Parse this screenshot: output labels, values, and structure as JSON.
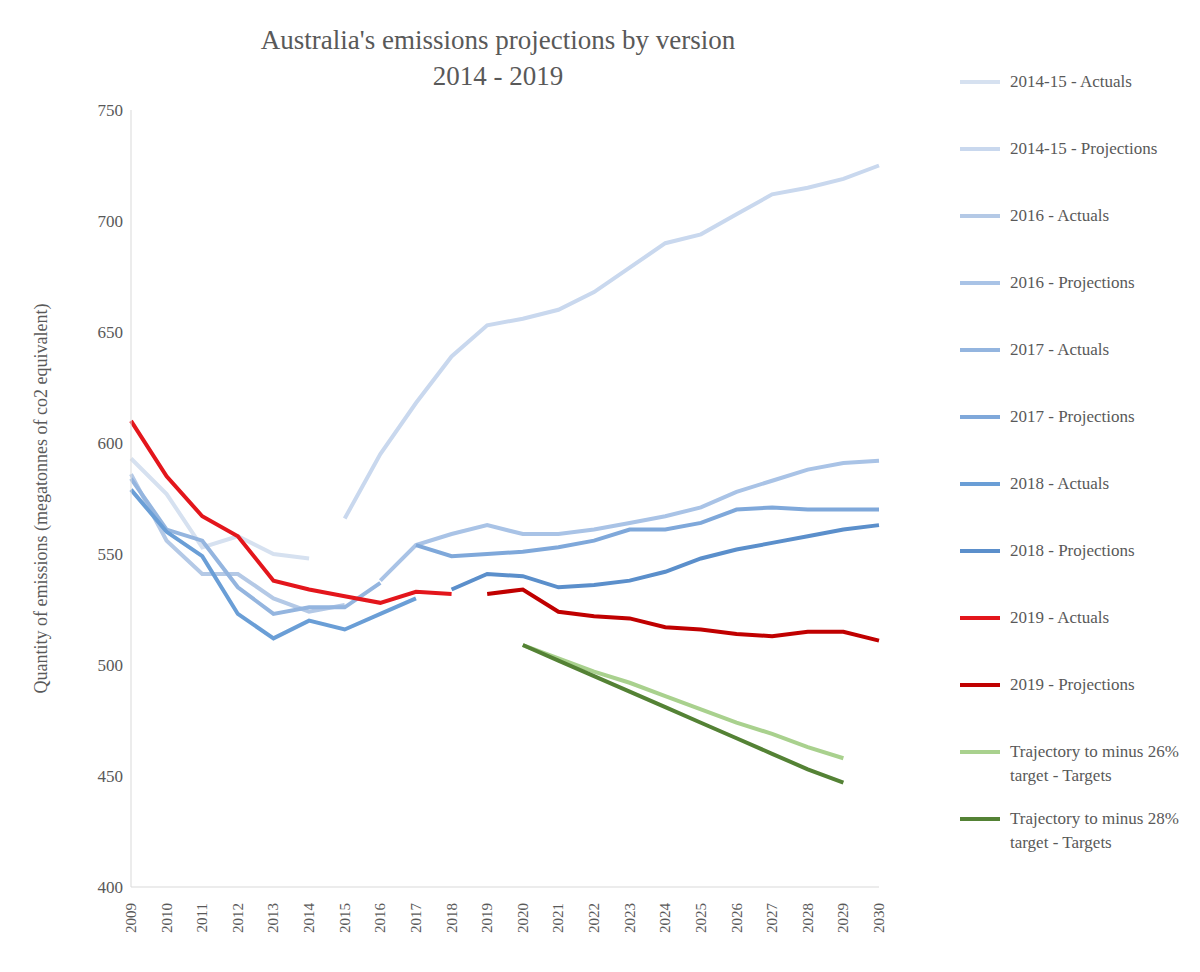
{
  "chart_data": {
    "type": "line",
    "title": "Australia's emissions projections by version",
    "subtitle": "2014 - 2019",
    "y_label": "Quantity of emissions (megatonnes of co2 equivalent)",
    "categories": [
      "2009",
      "2010",
      "2011",
      "2012",
      "2013",
      "2014",
      "2015",
      "2016",
      "2017",
      "2018",
      "2019",
      "2020",
      "2021",
      "2022",
      "2023",
      "2024",
      "2025",
      "2026",
      "2027",
      "2028",
      "2029",
      "2030"
    ],
    "ylim": [
      400,
      750
    ],
    "yticks": [
      400,
      450,
      500,
      550,
      600,
      650,
      700,
      750
    ],
    "grid": false,
    "legend": "right",
    "series": [
      {
        "name": "2014-15 - Actuals",
        "color": "#d6e1f0",
        "values": [
          593,
          577,
          553,
          558,
          550,
          548,
          null,
          null,
          null,
          null,
          null,
          null,
          null,
          null,
          null,
          null,
          null,
          null,
          null,
          null,
          null,
          null
        ]
      },
      {
        "name": "2014-15 - Projections",
        "color": "#c9d8ee",
        "values": [
          null,
          null,
          null,
          null,
          null,
          null,
          566,
          595,
          618,
          639,
          653,
          656,
          660,
          668,
          679,
          690,
          694,
          703,
          712,
          715,
          719,
          725
        ]
      },
      {
        "name": "2016 - Actuals",
        "color": "#b4c9e6",
        "values": [
          586,
          556,
          541,
          541,
          530,
          524,
          527,
          null,
          null,
          null,
          null,
          null,
          null,
          null,
          null,
          null,
          null,
          null,
          null,
          null,
          null,
          null
        ]
      },
      {
        "name": "2016 - Projections",
        "color": "#a9c3e6",
        "values": [
          null,
          null,
          null,
          null,
          null,
          null,
          null,
          538,
          554,
          559,
          563,
          559,
          559,
          561,
          564,
          567,
          571,
          578,
          583,
          588,
          591,
          592
        ]
      },
      {
        "name": "2017 - Actuals",
        "color": "#94b5df",
        "values": [
          584,
          561,
          556,
          535,
          523,
          526,
          526,
          537,
          null,
          null,
          null,
          null,
          null,
          null,
          null,
          null,
          null,
          null,
          null,
          null,
          null,
          null
        ]
      },
      {
        "name": "2017 - Projections",
        "color": "#7fa8da",
        "values": [
          null,
          null,
          null,
          null,
          null,
          null,
          null,
          null,
          554,
          549,
          550,
          551,
          553,
          556,
          561,
          561,
          564,
          570,
          571,
          570,
          570,
          570
        ]
      },
      {
        "name": "2018 - Actuals",
        "color": "#6a9ed6",
        "values": [
          579,
          560,
          549,
          523,
          512,
          520,
          516,
          523,
          530,
          null,
          null,
          null,
          null,
          null,
          null,
          null,
          null,
          null,
          null,
          null,
          null,
          null
        ]
      },
      {
        "name": "2018 - Projections",
        "color": "#5b8fcb",
        "values": [
          null,
          null,
          null,
          null,
          null,
          null,
          null,
          null,
          null,
          534,
          541,
          540,
          535,
          536,
          538,
          542,
          548,
          552,
          555,
          558,
          561,
          563
        ]
      },
      {
        "name": "2019 - Actuals",
        "color": "#e3161c",
        "values": [
          610,
          585,
          567,
          558,
          538,
          534,
          531,
          528,
          533,
          532,
          null,
          null,
          null,
          null,
          null,
          null,
          null,
          null,
          null,
          null,
          null,
          null
        ]
      },
      {
        "name": "2019 - Projections",
        "color": "#c00000",
        "values": [
          null,
          null,
          null,
          null,
          null,
          null,
          null,
          null,
          null,
          null,
          532,
          534,
          524,
          522,
          521,
          517,
          516,
          514,
          513,
          515,
          515,
          511
        ]
      },
      {
        "name": "Trajectory to minus 26% target - Targets",
        "color": "#a9d18e",
        "values": [
          null,
          null,
          null,
          null,
          null,
          null,
          null,
          null,
          null,
          null,
          null,
          509,
          503,
          497,
          492,
          486,
          480,
          474,
          469,
          463,
          458,
          null
        ]
      },
      {
        "name": "Trajectory to minus 28% target - Targets",
        "color": "#548235",
        "values": [
          null,
          null,
          null,
          null,
          null,
          null,
          null,
          null,
          null,
          null,
          null,
          509,
          502,
          495,
          488,
          481,
          474,
          467,
          460,
          453,
          447,
          null
        ]
      }
    ]
  }
}
